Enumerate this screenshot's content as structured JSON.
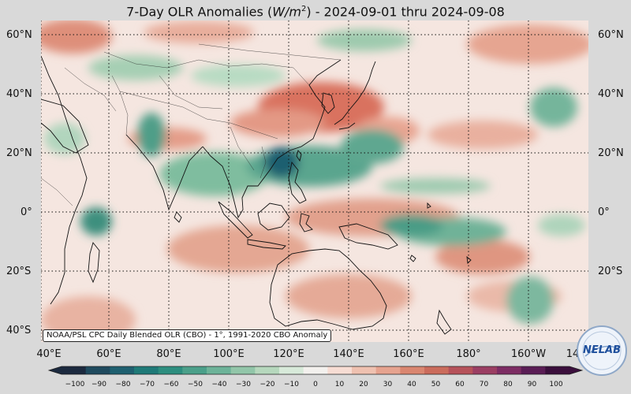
{
  "title": {
    "prefix": "7-Day OLR Anomalies (",
    "unit_base": "W/m",
    "unit_exp": "2",
    "suffix": ") - 2024-09-01 thru 2024-09-08"
  },
  "latitudes": [
    "60°N",
    "40°N",
    "20°N",
    "0°",
    "20°S",
    "40°S"
  ],
  "longitudes": [
    "40°E",
    "60°E",
    "80°E",
    "100°E",
    "120°E",
    "140°E",
    "160°E",
    "180°",
    "160°W",
    "14"
  ],
  "source_note": "NOAA/PSL CPC Daily Blended OLR (CBO) - 1°, 1991-2020 CBO Anomaly",
  "colorbar": {
    "ticks": [
      "−100",
      "−90",
      "−80",
      "−70",
      "−60",
      "−50",
      "−40",
      "−30",
      "−20",
      "−10",
      "0",
      "10",
      "20",
      "30",
      "40",
      "50",
      "60",
      "70",
      "80",
      "90",
      "100"
    ],
    "colors": [
      "#1c2a3f",
      "#1f4a5e",
      "#1f6070",
      "#1f7a78",
      "#2d8e7f",
      "#4ba08a",
      "#6db399",
      "#92c6a9",
      "#b6d8bd",
      "#d8eada",
      "#f3f1ee",
      "#f7ddd4",
      "#efc1b0",
      "#e6a38f",
      "#da8670",
      "#cb6c5c",
      "#b6525a",
      "#9b3e63",
      "#7d2d64",
      "#5a1d55",
      "#3a0f3c"
    ]
  },
  "logo": {
    "text_a": "NE",
    "text_b": "LAB",
    "color": "#1e4f9c"
  }
}
